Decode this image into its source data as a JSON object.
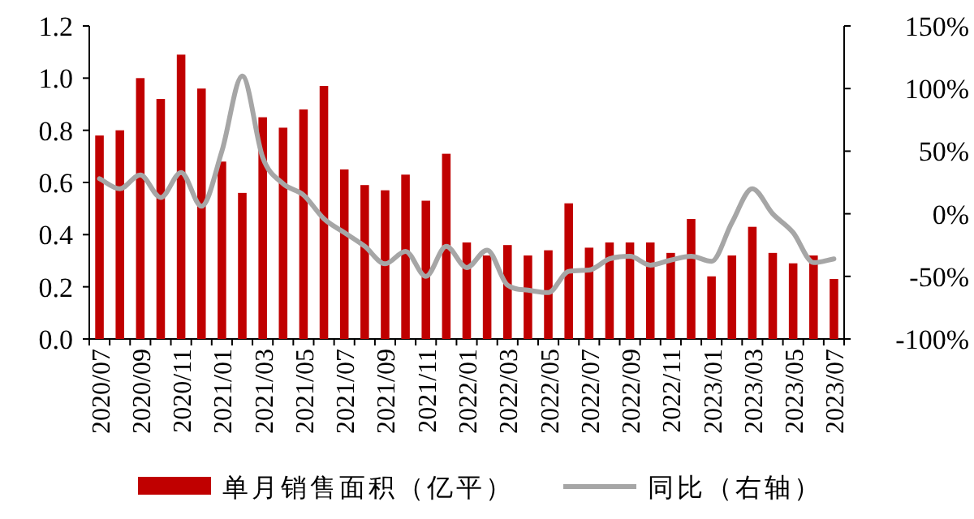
{
  "chart_data": {
    "type": "bar",
    "categories": [
      "2020/07",
      null,
      "2020/09",
      null,
      "2020/11",
      null,
      "2021/01",
      null,
      "2021/03",
      null,
      "2021/05",
      null,
      "2021/07",
      null,
      "2021/09",
      null,
      "2021/11",
      null,
      "2022/01",
      null,
      "2022/03",
      null,
      "2022/05",
      null,
      "2022/07",
      null,
      "2022/09",
      null,
      "2022/11",
      null,
      "2023/01",
      null,
      "2023/03",
      null,
      "2023/05",
      null,
      "2023/07"
    ],
    "series": [
      {
        "name": "单月销售面积（亿平）",
        "color": "#c00000",
        "values": [
          0.78,
          0.8,
          1.0,
          0.92,
          1.09,
          0.96,
          0.68,
          0.56,
          0.85,
          0.81,
          0.88,
          0.97,
          0.65,
          0.59,
          0.57,
          0.63,
          0.53,
          0.71,
          0.37,
          0.32,
          0.36,
          0.32,
          0.34,
          0.52,
          0.35,
          0.37,
          0.37,
          0.37,
          0.33,
          0.46,
          0.24,
          0.32,
          0.43,
          0.33,
          0.29,
          0.32,
          0.23
        ]
      },
      {
        "name": "同比（右轴）",
        "type": "line",
        "axis": "y2",
        "color": "#a6a6a6",
        "values": [
          28,
          20,
          31,
          13,
          33,
          6,
          50,
          110,
          45,
          24,
          15,
          -4,
          -15,
          -26,
          -40,
          -30,
          -50,
          -26,
          -43,
          -29,
          -57,
          -61,
          -63,
          -46,
          -45,
          -36,
          -34,
          -41,
          -37,
          -34,
          -38,
          -7,
          20,
          0,
          -15,
          -39,
          -36
        ]
      }
    ],
    "ylim": [
      0,
      1.2
    ],
    "yticks": [
      {
        "value": 0,
        "label": "0.0"
      },
      0.2,
      0.4,
      0.6,
      0.8,
      {
        "value": 1,
        "label": "1.0"
      },
      1.2
    ],
    "y2lim": [
      -100,
      150
    ],
    "y2ticks": [
      {
        "value": -100,
        "label": "-100%"
      },
      {
        "value": -50,
        "label": "-50%"
      },
      {
        "value": 0,
        "label": "0%"
      },
      {
        "value": 50,
        "label": "50%"
      },
      {
        "value": 100,
        "label": "100%"
      },
      {
        "value": 150,
        "label": "150%"
      }
    ],
    "legend": "bottom"
  }
}
